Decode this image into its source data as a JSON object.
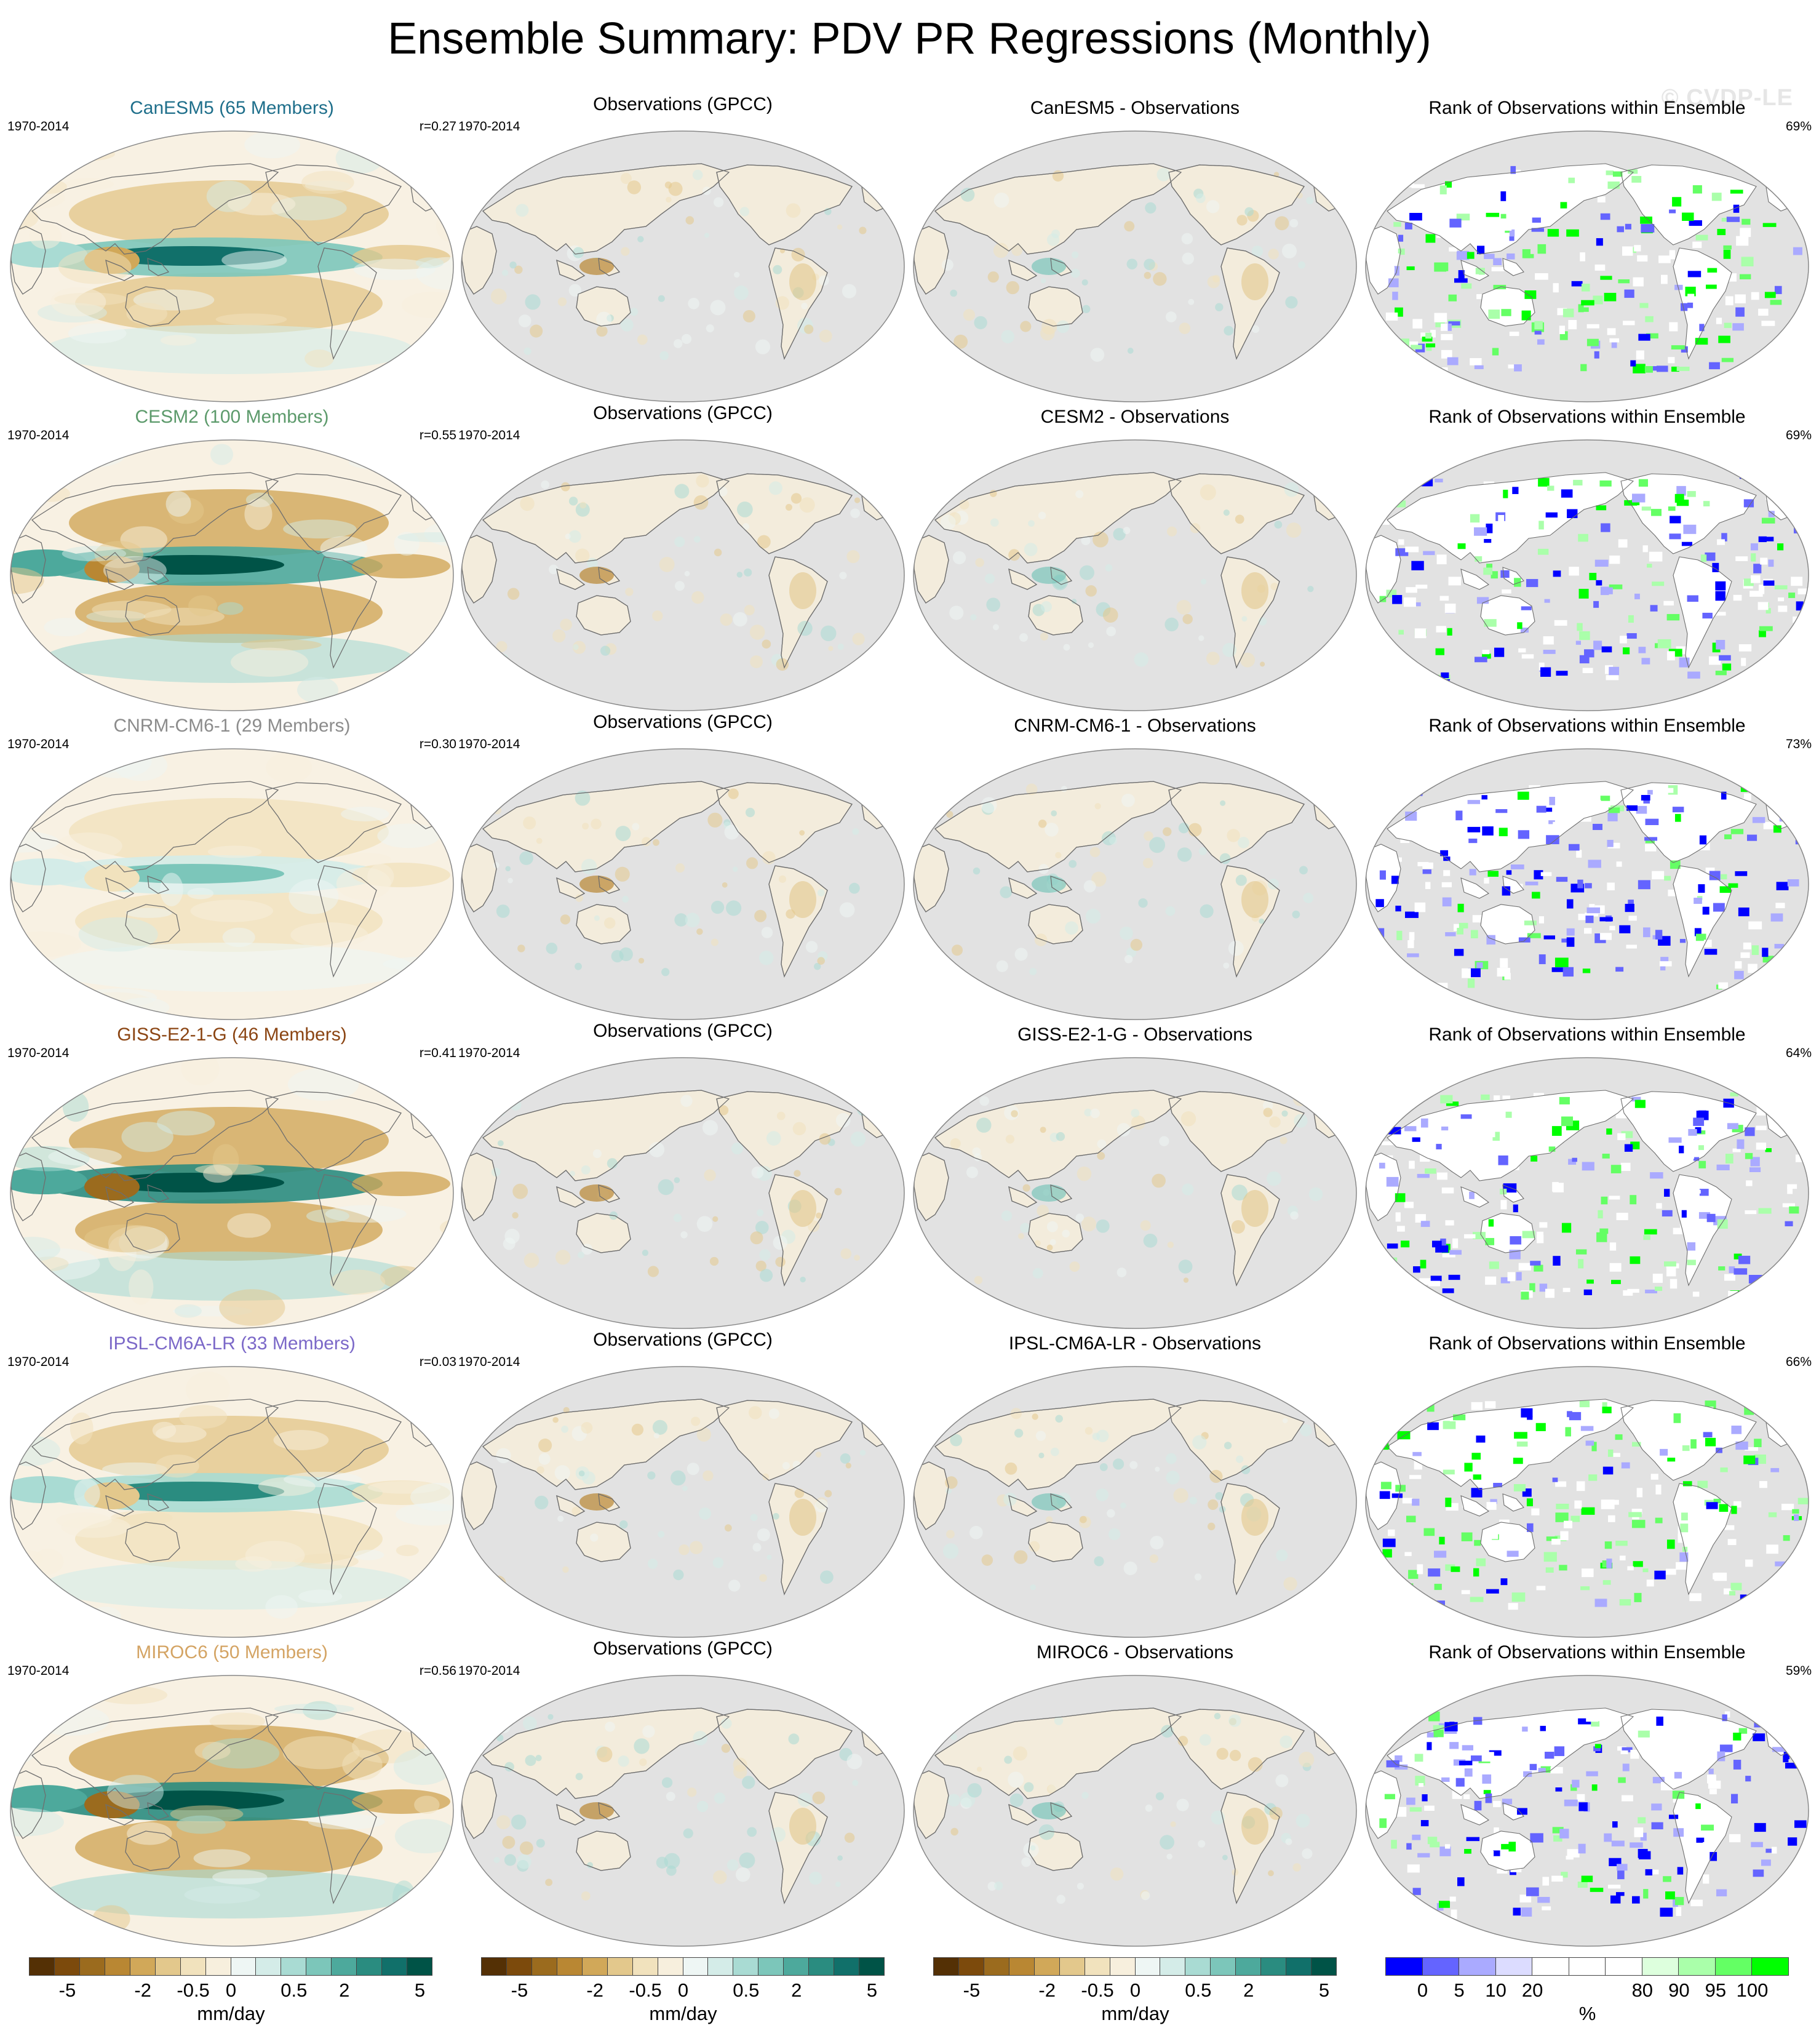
{
  "title": "Ensemble Summary: PDV PR Regressions (Monthly)",
  "watermark": "© CVDP-LE",
  "period": "1970-2014",
  "obs_title": "Observations (GPCC)",
  "rank_title": "Rank of Observations within Ensemble",
  "rows": [
    {
      "model": "CanESM5",
      "members_title": "CanESM5 (65 Members)",
      "color": "#1f6f8b",
      "r": "r=0.27",
      "diff_title": "CanESM5 - Observations",
      "rank_pct": "69%",
      "amp": 0.95,
      "rank_mix": "green"
    },
    {
      "model": "CESM2",
      "members_title": "CESM2 (100 Members)",
      "color": "#5c9a6b",
      "r": "r=0.55",
      "diff_title": "CESM2 - Observations",
      "rank_pct": "69%",
      "amp": 1.4,
      "rank_mix": "mixed"
    },
    {
      "model": "CNRM-CM6-1",
      "members_title": "CNRM-CM6-1 (29 Members)",
      "color": "#8c8c8c",
      "r": "r=0.30",
      "diff_title": "CNRM-CM6-1 - Observations",
      "rank_pct": "73%",
      "amp": 0.55,
      "rank_mix": "blue"
    },
    {
      "model": "GISS-E2-1-G",
      "members_title": "GISS-E2-1-G (46 Members)",
      "color": "#8b4513",
      "r": "r=0.41",
      "diff_title": "GISS-E2-1-G - Observations",
      "rank_pct": "64%",
      "amp": 1.5,
      "rank_mix": "mixed"
    },
    {
      "model": "IPSL-CM6A-LR",
      "members_title": "IPSL-CM6A-LR (33 Members)",
      "color": "#7b68c8",
      "r": "r=0.03",
      "diff_title": "IPSL-CM6A-LR - Observations",
      "rank_pct": "66%",
      "amp": 0.85,
      "rank_mix": "green"
    },
    {
      "model": "MIROC6",
      "members_title": "MIROC6 (50 Members)",
      "color": "#d4a464",
      "r": "r=0.56",
      "diff_title": "MIROC6 - Observations",
      "rank_pct": "59%",
      "amp": 1.5,
      "rank_mix": "blue"
    }
  ],
  "colorbars": [
    {
      "ticks": [
        "-5",
        "-2",
        "-0.5",
        "0",
        "0.5",
        "2",
        "5"
      ],
      "units": "mm/day"
    },
    {
      "ticks": [
        "-5",
        "-2",
        "-0.5",
        "0",
        "0.5",
        "2",
        "5"
      ],
      "units": "mm/day"
    },
    {
      "ticks": [
        "-5",
        "-2",
        "-0.5",
        "0",
        "0.5",
        "2",
        "5"
      ],
      "units": "mm/day"
    },
    {
      "ticks": [
        "0",
        "5",
        "10",
        "20",
        "80",
        "90",
        "95",
        "100"
      ],
      "units": "%"
    }
  ],
  "palette": {
    "diverging": [
      "#543005",
      "#7c4a0c",
      "#9b6b1e",
      "#b98733",
      "#d1a859",
      "#e3c88c",
      "#f1e2bd",
      "#f7efdd",
      "#eef6f4",
      "#d4ece8",
      "#a9dbd3",
      "#7cc6ba",
      "#4da99c",
      "#2a8c80",
      "#11706a",
      "#005347"
    ],
    "rank": [
      "#0000ff",
      "#6464ff",
      "#aaaaff",
      "#dcdcff",
      "#ffffff",
      "#ffffff",
      "#ffffff",
      "#ddffdd",
      "#aaffaa",
      "#64ff64",
      "#00ff00"
    ]
  },
  "colors": {
    "ocean_mask": "#e2e2e2",
    "coast": "#6e6e6e",
    "frame": "#888888"
  }
}
